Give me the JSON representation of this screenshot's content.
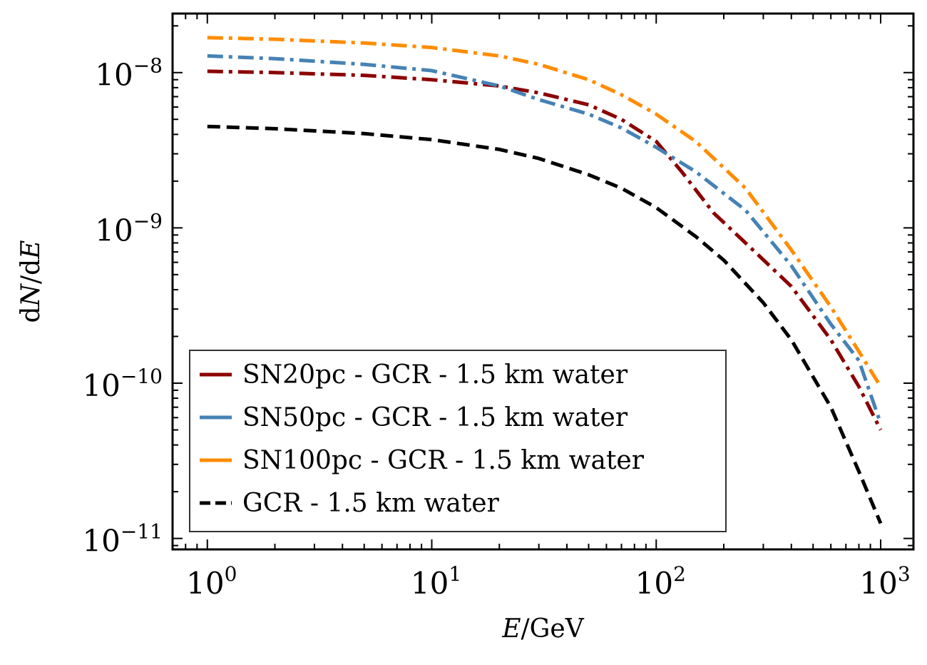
{
  "chart_data": {
    "type": "line",
    "xlabel": "E/GeV",
    "ylabel": "dN/dE",
    "xscale": "log",
    "yscale": "log",
    "xlim": [
      0.7,
      1400
    ],
    "ylim": [
      8.5e-12,
      2.4e-08
    ],
    "xticks": [
      {
        "value": 1,
        "base": "10",
        "exp": "0"
      },
      {
        "value": 10,
        "base": "10",
        "exp": "1"
      },
      {
        "value": 100,
        "base": "10",
        "exp": "2"
      },
      {
        "value": 1000,
        "base": "10",
        "exp": "3"
      }
    ],
    "yticks": [
      {
        "value": 1e-11,
        "base": "10",
        "exp": "−11"
      },
      {
        "value": 1e-10,
        "base": "10",
        "exp": "−10"
      },
      {
        "value": 1e-09,
        "base": "10",
        "exp": "−9"
      },
      {
        "value": 1e-08,
        "base": "10",
        "exp": "−8"
      }
    ],
    "grid": false,
    "legend_position": "lower-left",
    "series": [
      {
        "name": "SN20pc - GCR - 1.5 km water",
        "color": "#8b0000",
        "style": "dashdot",
        "x": [
          1,
          2,
          5,
          10,
          20,
          30,
          50,
          70,
          100,
          130,
          180,
          250,
          400,
          600,
          800,
          1000
        ],
        "y": [
          1.02e-08,
          1e-08,
          9.6e-09,
          9e-09,
          8.2e-09,
          7.4e-09,
          6.2e-09,
          5e-09,
          3.6e-09,
          2.3e-09,
          1.25e-09,
          8e-10,
          4.2e-10,
          1.9e-10,
          9.5e-11,
          5e-11
        ]
      },
      {
        "name": "SN50pc - GCR - 1.5 km water",
        "color": "#4682b4",
        "style": "dashdot",
        "x": [
          1,
          2,
          5,
          10,
          20,
          30,
          50,
          70,
          100,
          150,
          250,
          400,
          600,
          800,
          1000
        ],
        "y": [
          1.28e-08,
          1.23e-08,
          1.13e-08,
          1.03e-08,
          8.2e-09,
          6.7e-09,
          5.4e-09,
          4.4e-09,
          3.3e-09,
          2.3e-09,
          1.3e-09,
          5.7e-10,
          2.4e-10,
          1.4e-10,
          5.5e-11
        ]
      },
      {
        "name": "SN100pc - GCR - 1.5 km water",
        "color": "#ff8c00",
        "style": "dashdot",
        "x": [
          1,
          2,
          5,
          10,
          20,
          30,
          50,
          70,
          100,
          150,
          250,
          400,
          600,
          800,
          1000
        ],
        "y": [
          1.68e-08,
          1.64e-08,
          1.55e-08,
          1.45e-08,
          1.28e-08,
          1.13e-08,
          9e-09,
          7.2e-09,
          5.4e-09,
          3.6e-09,
          1.8e-09,
          7.2e-10,
          3.1e-10,
          1.6e-10,
          9.5e-11
        ]
      },
      {
        "name": "GCR - 1.5 km water",
        "color": "#000000",
        "style": "dashed",
        "x": [
          1,
          2,
          5,
          10,
          20,
          30,
          50,
          70,
          100,
          150,
          200,
          300,
          400,
          600,
          800,
          1000
        ],
        "y": [
          4.5e-09,
          4.35e-09,
          4.05e-09,
          3.7e-09,
          3.2e-09,
          2.8e-09,
          2.2e-09,
          1.8e-09,
          1.35e-09,
          8.8e-10,
          6.2e-10,
          3.3e-10,
          1.9e-10,
          7e-11,
          2.7e-11,
          1.25e-11
        ]
      }
    ]
  }
}
